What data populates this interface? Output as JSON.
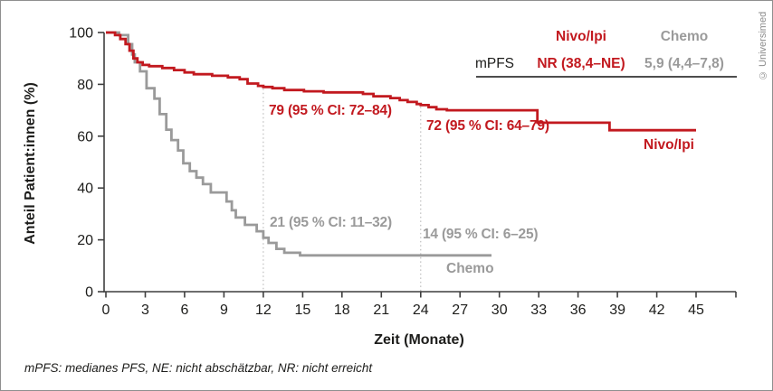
{
  "copyright": "© Universimed",
  "y_axis": {
    "label": "Anteil Patient:innen (%)"
  },
  "x_axis": {
    "label": "Zeit (Monate)"
  },
  "summary_table": {
    "col_nivo_header": "Nivo/Ipi",
    "col_chemo_header": "Chemo",
    "row_label": "mPFS",
    "nivo_value": "NR (38,4–NE)",
    "chemo_value": "5,9 (4,4–7,8)"
  },
  "annotations": {
    "nivo_12": "79 (95 % CI: 72–84)",
    "nivo_24": "72 (95 % CI: 64–79)",
    "chemo_12": "21 (95 % CI: 11–32)",
    "chemo_24": "14 (95 % CI: 6–25)"
  },
  "curve_labels": {
    "nivo": "Nivo/Ipi",
    "chemo": "Chemo"
  },
  "footnote": "mPFS: medianes PFS, NE: nicht abschätzbar, NR: nicht erreicht",
  "colors": {
    "nivo": "#c2191f",
    "chemo": "#9a9a9a",
    "axis": "#3f3f3f",
    "text": "#1d1d1b",
    "refline": "#b0b0b0"
  },
  "chart_data": {
    "type": "line",
    "subtype": "kaplan-meier-step",
    "title": "",
    "xlabel": "Zeit (Monate)",
    "ylabel": "Anteil Patient:innen (%)",
    "xlim": [
      0,
      48
    ],
    "ylim": [
      0,
      100
    ],
    "x_ticks": [
      0,
      3,
      6,
      9,
      12,
      15,
      18,
      21,
      24,
      27,
      30,
      33,
      36,
      39,
      42,
      45
    ],
    "y_ticks": [
      0,
      20,
      40,
      60,
      80,
      100
    ],
    "grid": false,
    "legend_position": "none",
    "reference_lines_x": [
      12,
      24
    ],
    "series": [
      {
        "name": "Nivo/Ipi",
        "color": "#c2191f",
        "points": [
          [
            0,
            100
          ],
          [
            0.7,
            99
          ],
          [
            1.1,
            97.5
          ],
          [
            1.5,
            95.5
          ],
          [
            1.8,
            93
          ],
          [
            2.1,
            90
          ],
          [
            2.4,
            88.5
          ],
          [
            2.8,
            87.5
          ],
          [
            3.3,
            87
          ],
          [
            4.3,
            86.3
          ],
          [
            5.2,
            85.5
          ],
          [
            6.0,
            84.6
          ],
          [
            6.7,
            83.9
          ],
          [
            8.1,
            83.3
          ],
          [
            9.3,
            82.7
          ],
          [
            10.2,
            82
          ],
          [
            10.8,
            80.3
          ],
          [
            11.6,
            79.4
          ],
          [
            12.0,
            79
          ],
          [
            12.7,
            78.5
          ],
          [
            13.6,
            77.8
          ],
          [
            15.1,
            77.3
          ],
          [
            16.6,
            76.9
          ],
          [
            19.6,
            76.3
          ],
          [
            20.4,
            75.4
          ],
          [
            21.7,
            74.7
          ],
          [
            22.4,
            73.9
          ],
          [
            23.0,
            73.2
          ],
          [
            23.7,
            72.4
          ],
          [
            24.0,
            72
          ],
          [
            24.6,
            71.2
          ],
          [
            25.2,
            70.4
          ],
          [
            26.0,
            70
          ],
          [
            32.9,
            65.2
          ],
          [
            38.4,
            62.3
          ],
          [
            45,
            62.3
          ]
        ]
      },
      {
        "name": "Chemo",
        "color": "#9a9a9a",
        "points": [
          [
            0,
            100
          ],
          [
            1.0,
            99
          ],
          [
            1.7,
            95.5
          ],
          [
            2.0,
            91.5
          ],
          [
            2.2,
            88.5
          ],
          [
            2.6,
            85
          ],
          [
            3.1,
            78.5
          ],
          [
            3.7,
            74.5
          ],
          [
            4.1,
            68.5
          ],
          [
            4.6,
            62.5
          ],
          [
            5.0,
            58.5
          ],
          [
            5.5,
            54.5
          ],
          [
            5.9,
            49.5
          ],
          [
            6.4,
            46.5
          ],
          [
            6.9,
            44
          ],
          [
            7.4,
            41.5
          ],
          [
            8.0,
            38.3
          ],
          [
            9.2,
            34.8
          ],
          [
            9.6,
            31.4
          ],
          [
            9.9,
            28.6
          ],
          [
            10.6,
            25.8
          ],
          [
            11.5,
            23.3
          ],
          [
            12.0,
            20.8
          ],
          [
            12.4,
            18.8
          ],
          [
            13.0,
            16.5
          ],
          [
            13.6,
            15
          ],
          [
            14.8,
            14
          ],
          [
            29.4,
            14
          ]
        ]
      }
    ],
    "landmark_estimates": [
      {
        "series": "Nivo/Ipi",
        "month": 12,
        "value": 79,
        "ci": "72–84"
      },
      {
        "series": "Nivo/Ipi",
        "month": 24,
        "value": 72,
        "ci": "64–79"
      },
      {
        "series": "Chemo",
        "month": 12,
        "value": 21,
        "ci": "11–32"
      },
      {
        "series": "Chemo",
        "month": 24,
        "value": 14,
        "ci": "6–25"
      }
    ],
    "median_pfs": {
      "Nivo/Ipi": "NR (38,4–NE)",
      "Chemo": "5,9 (4,4–7,8)"
    }
  }
}
